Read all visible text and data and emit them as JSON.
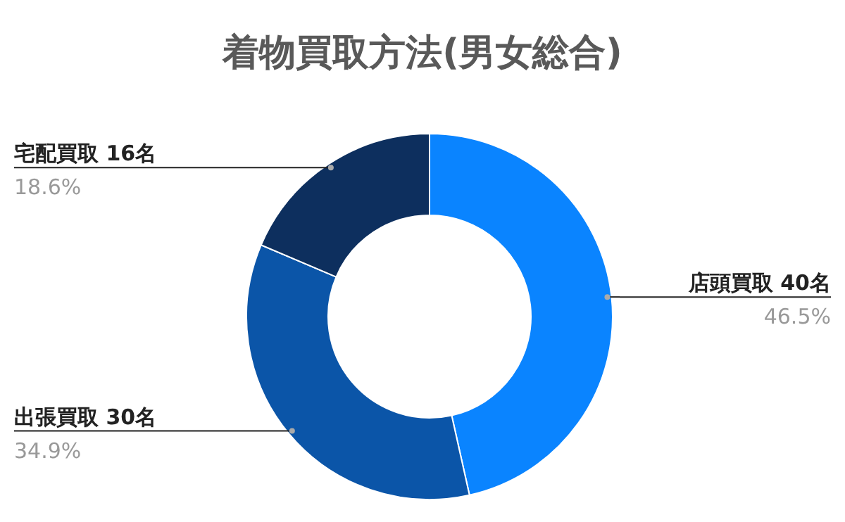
{
  "chart_data": {
    "type": "donut",
    "title": "着物買取方法(男女総合)",
    "categories": [
      "店頭買取 40名",
      "出張買取 30名",
      "宅配買取 16名"
    ],
    "values": [
      46.5,
      34.9,
      18.6
    ],
    "value_labels": [
      "46.5%",
      "34.9%",
      "18.6%"
    ],
    "colors": [
      "#0a84ff",
      "#0b55a8",
      "#0d2f5e"
    ]
  }
}
